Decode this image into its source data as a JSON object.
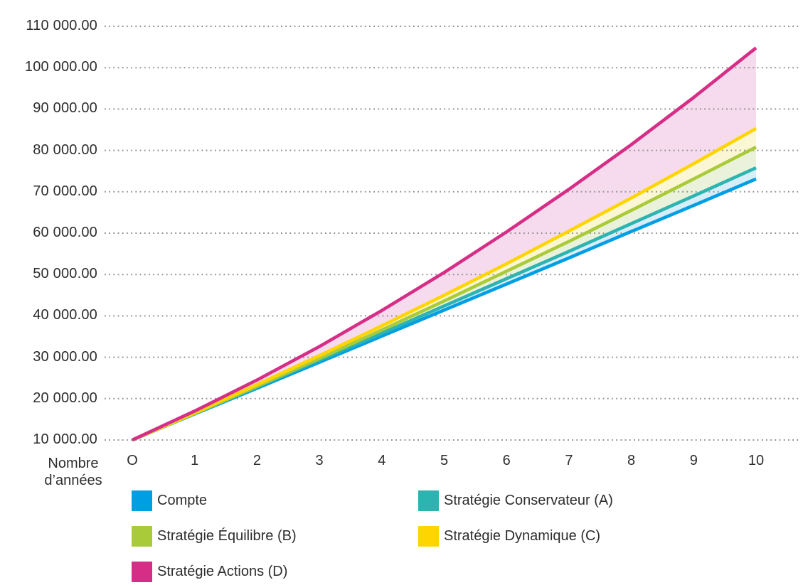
{
  "chart_data": {
    "type": "line",
    "title": "",
    "xlabel": "Nombre d’années",
    "ylabel": "",
    "x": [
      0,
      1,
      2,
      3,
      4,
      5,
      6,
      7,
      8,
      9,
      10
    ],
    "x_tick_labels": [
      "O",
      "1",
      "2",
      "3",
      "4",
      "5",
      "6",
      "7",
      "8",
      "9",
      "10"
    ],
    "y_tick_values": [
      110000,
      100000,
      90000,
      80000,
      70000,
      60000,
      50000,
      40000,
      30000,
      20000,
      10000
    ],
    "y_tick_labels": [
      "110 000.00",
      "100 000.00",
      "90 000.00",
      "80 000.00",
      "70 000.00",
      "60 000.00",
      "50 000.00",
      "40 000.00",
      "30 000.00",
      "20 000.00",
      "10 000.00"
    ],
    "ylim": [
      10000,
      110000
    ],
    "grid": "dotted-horizontal",
    "gridline_color": "#8f8f8f",
    "text_color": "#2d2d2d",
    "background_color": "#ffffff",
    "legend_position": "bottom",
    "series": [
      {
        "key": "compte",
        "label": "Compte",
        "color": "#009fe3",
        "values": [
          10000,
          16300,
          22500,
          28800,
          35100,
          41400,
          47700,
          54000,
          60400,
          66700,
          73100
        ]
      },
      {
        "key": "conservateur",
        "label": "Stratégie Conservateur (A)",
        "color": "#2cb4b0",
        "values": [
          10000,
          16400,
          22800,
          29300,
          35800,
          42400,
          49000,
          55600,
          62300,
          69000,
          75800
        ]
      },
      {
        "key": "equilibre",
        "label": "Stratégie Équilibre (B)",
        "color": "#a9cb3a",
        "values": [
          10000,
          16400,
          23000,
          29700,
          36600,
          43600,
          50800,
          58000,
          65500,
          73100,
          80800
        ]
      },
      {
        "key": "dynamique",
        "label": "Stratégie Dynamique (C)",
        "color": "#ffd500",
        "values": [
          10000,
          16600,
          23400,
          30400,
          37600,
          45000,
          52600,
          60500,
          68500,
          76800,
          85300
        ]
      },
      {
        "key": "actions",
        "label": "Stratégie Actions (D)",
        "color": "#d62e87",
        "values": [
          10000,
          17000,
          24500,
          32600,
          41300,
          50500,
          60300,
          70600,
          81400,
          92800,
          104800
        ]
      }
    ],
    "bands": [
      {
        "upper": "conservateur",
        "lower": "compte",
        "color": "#d7edf8"
      },
      {
        "upper": "equilibre",
        "lower": "conservateur",
        "color": "#ebf2db"
      },
      {
        "upper": "dynamique",
        "lower": "equilibre",
        "color": "#fbf6d3"
      },
      {
        "upper": "actions",
        "lower": "dynamique",
        "color": "#f6dbee"
      }
    ]
  }
}
